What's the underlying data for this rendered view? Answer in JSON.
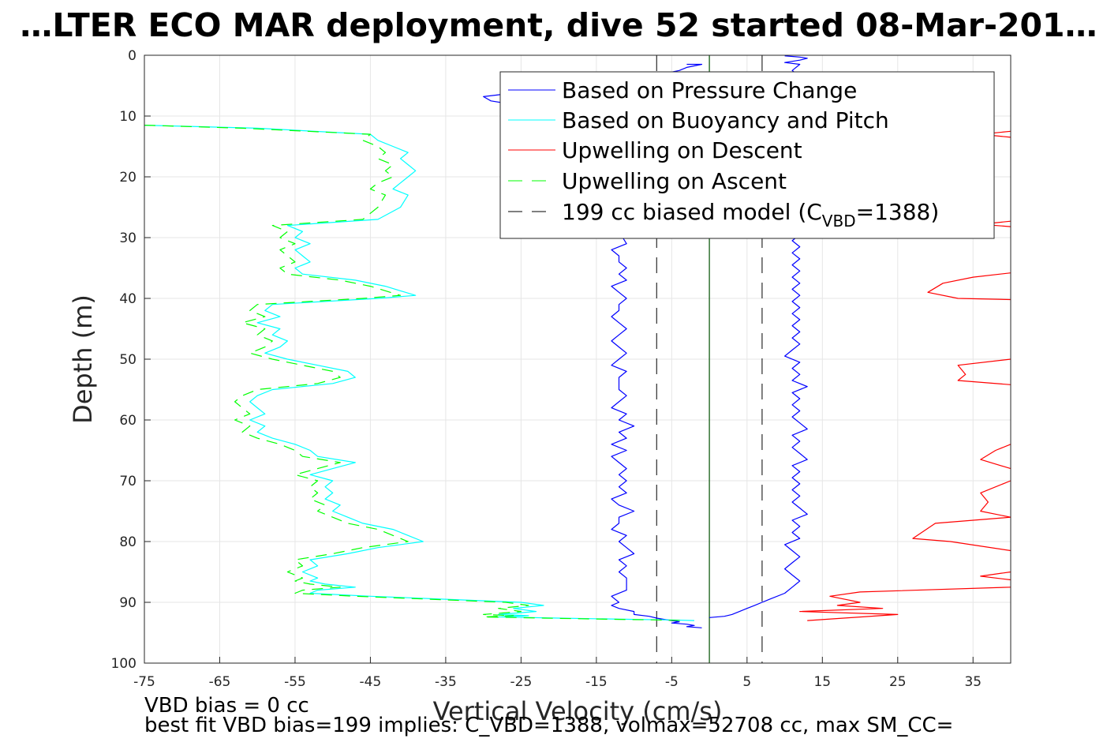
{
  "chart_data": {
    "type": "line",
    "title": "…LTER ECO MAR deployment, dive 52 started 08-Mar-201…",
    "xlabel": "Vertical Velocity (cm/s)",
    "ylabel": "Depth (m)",
    "xlim": [
      -75,
      40
    ],
    "ylim": [
      0,
      100
    ],
    "y_reversed": true,
    "grid": true,
    "legend_position": "top-right",
    "xticks": [
      "-75",
      "-65",
      "-55",
      "-45",
      "-35",
      "-25",
      "-15",
      "-5",
      "5",
      "15",
      "25",
      "35"
    ],
    "yticks": [
      "0",
      "10",
      "20",
      "30",
      "40",
      "50",
      "60",
      "70",
      "80",
      "90",
      "100"
    ],
    "legend": {
      "pressure": "Based on Pressure Change",
      "buoyancy": "Based on Buoyancy and Pitch",
      "upwell_descent": "Upwelling on Descent",
      "upwell_ascent": "Upwelling on Ascent",
      "model_prefix": "199 cc biased model (C",
      "model_sub": "VBD",
      "model_suffix": "=1388)"
    },
    "colors": {
      "pressure": "#0000ff",
      "buoyancy": "#00ffff",
      "upwell_descent": "#ff0000",
      "upwell_ascent": "#00ff00",
      "model": "#000000",
      "zero": "#005000",
      "grid": "#e6e6e6"
    },
    "model_lines_x": [
      -7,
      7
    ],
    "zero_line_x": 0,
    "series": [
      {
        "key": "pressure_descent",
        "name": "Based on Pressure Change",
        "x": [
          -3,
          -1,
          -3,
          -4,
          -8,
          -12,
          -17,
          -22,
          -25,
          -28,
          -30,
          -29,
          -24,
          -18,
          -14,
          -12,
          -11,
          -13,
          -12,
          -11,
          -12,
          -13,
          -11,
          -12,
          -11,
          -13,
          -12,
          -12,
          -11,
          -12,
          -11,
          -13,
          -12,
          -11,
          -12,
          -12,
          -13,
          -12,
          -11,
          -12,
          -13,
          -12,
          -11,
          -12,
          -13,
          -11,
          -12,
          -12,
          -12,
          -11,
          -12,
          -13,
          -11,
          -12,
          -10,
          -12,
          -11,
          -13,
          -11,
          -13,
          -12,
          -11,
          -12,
          -11,
          -12,
          -11,
          -13,
          -12,
          -10,
          -12,
          -12,
          -13,
          -11,
          -12,
          -11,
          -10,
          -12,
          -11,
          -12,
          -11,
          -11,
          -11,
          -13,
          -12,
          -13,
          -12,
          -10,
          -10,
          -8,
          -7,
          -6,
          -5,
          -4,
          -5,
          -3,
          -2,
          -3,
          -1
        ],
        "y": [
          1.5,
          1.5,
          2.0,
          2.5,
          3.5,
          4.3,
          5.0,
          5.5,
          6.0,
          6.5,
          6.8,
          7.5,
          8.5,
          9.5,
          11,
          13,
          15,
          17,
          19,
          21,
          23,
          25,
          27,
          29,
          31,
          32,
          33,
          34,
          35,
          36,
          37,
          38,
          39,
          40,
          41,
          42,
          43,
          44,
          45,
          46,
          47,
          48,
          49,
          50,
          51,
          52,
          53,
          54,
          55,
          56,
          57,
          58,
          59,
          60,
          61,
          62,
          63,
          64,
          65,
          66,
          67,
          68,
          69,
          70,
          71,
          72,
          73,
          74,
          75,
          76,
          77,
          78,
          79,
          80,
          81,
          82,
          83,
          84,
          85,
          86,
          87,
          88,
          89,
          90,
          90.5,
          91,
          91.5,
          92,
          92.3,
          92.6,
          92.8,
          93.0,
          93.2,
          93.4,
          93.6,
          93.8,
          94.0,
          94.2
        ]
      },
      {
        "key": "pressure_ascent",
        "name": "",
        "x": [
          0,
          2,
          3,
          4,
          5,
          6,
          7,
          8,
          10,
          11,
          12,
          11,
          10,
          11,
          12,
          11,
          10,
          12,
          11,
          12,
          11,
          13,
          12,
          11,
          12,
          11,
          12,
          11,
          12,
          11,
          13,
          12,
          11,
          12,
          11,
          13,
          12,
          11,
          12,
          11,
          12,
          11,
          13,
          11,
          12,
          11,
          12,
          10,
          11,
          12,
          11,
          12,
          11,
          12,
          11,
          12,
          11,
          12,
          11,
          12,
          11,
          12,
          11,
          12,
          11,
          12,
          11,
          12,
          10,
          12,
          10,
          12,
          11,
          12,
          11,
          12,
          11,
          12,
          11,
          12,
          11,
          12,
          11,
          12,
          11,
          12,
          11,
          12,
          10,
          12,
          11,
          12,
          13,
          12,
          11,
          12,
          10,
          12,
          13,
          12,
          11,
          10
        ],
        "y": [
          92.5,
          92.3,
          92.0,
          91.5,
          91.0,
          90.5,
          90.0,
          89.5,
          88.5,
          87.5,
          86.5,
          85.5,
          84.5,
          83.5,
          82.5,
          81.5,
          80.5,
          79.5,
          78.5,
          77.5,
          76.5,
          75.5,
          74.5,
          73.5,
          72.5,
          71.5,
          70.5,
          69.5,
          68.5,
          67.5,
          66.5,
          65.5,
          64.5,
          63.5,
          62.5,
          61.5,
          60.5,
          59.5,
          58.5,
          57.5,
          56.5,
          55.5,
          54.5,
          53.5,
          52.5,
          51.5,
          50.5,
          49.5,
          48.5,
          47.5,
          46.5,
          45.5,
          44.5,
          43.5,
          42.5,
          41.5,
          40.5,
          39.5,
          38.5,
          37.5,
          36.5,
          35.5,
          34.5,
          33.5,
          32.5,
          31.5,
          30.5,
          29.5,
          28.5,
          27.5,
          26.5,
          25.5,
          24.5,
          23.5,
          22.5,
          21.5,
          20.5,
          19.5,
          18.5,
          17.5,
          16.5,
          15.5,
          14.5,
          13.5,
          12.5,
          11.5,
          10.5,
          9.5,
          8.5,
          7.5,
          6.5,
          5.5,
          4.5,
          3.5,
          2.5,
          1.5,
          1.2,
          0.8,
          0.5,
          0.3,
          0.2,
          0.1
        ]
      },
      {
        "key": "buoyancy",
        "name": "Based on Buoyancy and Pitch",
        "x": [
          -75,
          -60,
          -45,
          -44,
          -42,
          -40,
          -41,
          -40,
          -39,
          -40,
          -41,
          -42,
          -40,
          -41,
          -44,
          -56,
          -54,
          -55,
          -53,
          -55,
          -54,
          -53,
          -55,
          -54,
          -47,
          -43,
          -39,
          -44,
          -58,
          -59,
          -57,
          -60,
          -57,
          -58,
          -56,
          -57,
          -59,
          -56,
          -52,
          -48,
          -47,
          -50,
          -58,
          -60,
          -61,
          -60,
          -59,
          -61,
          -59,
          -60,
          -58,
          -55,
          -53,
          -52,
          -47,
          -50,
          -53,
          -50,
          -51,
          -50,
          -51,
          -49,
          -50,
          -48,
          -46,
          -42,
          -40,
          -38,
          -44,
          -48,
          -53,
          -52,
          -54,
          -52,
          -53,
          -51,
          -47,
          -52,
          -53,
          -45,
          -35,
          -25,
          -22,
          -26,
          -23,
          -28,
          -24,
          -28,
          -20,
          -15,
          -10,
          -5,
          -2
        ],
        "y": [
          11.5,
          12,
          13,
          14,
          15,
          16,
          17,
          18,
          19,
          20,
          21,
          22,
          23,
          25,
          27,
          28,
          29,
          30,
          31,
          32,
          33,
          34,
          35,
          36,
          37,
          38,
          39.5,
          40,
          41,
          42,
          43,
          44,
          45,
          46,
          47,
          48,
          49,
          50,
          51,
          52,
          53,
          54,
          55,
          56,
          57,
          58,
          59,
          60,
          61,
          62,
          63,
          64,
          65,
          66,
          67,
          68,
          69,
          70,
          71,
          72,
          73,
          74,
          75,
          76,
          77,
          78,
          79,
          80,
          81,
          82,
          83,
          84,
          85,
          86,
          86.5,
          87,
          87.5,
          88,
          88.5,
          89,
          89.5,
          90,
          90.5,
          91,
          91.5,
          92,
          92.2,
          92.4,
          92.6,
          92.7,
          92.8,
          92.9,
          93.0
        ]
      },
      {
        "key": "upwell_ascent",
        "name": "Upwelling on Ascent",
        "x": [
          -75,
          -62,
          -45,
          -46,
          -44,
          -43,
          -44,
          -42,
          -43,
          -42,
          -44,
          -45,
          -43,
          -44,
          -46,
          -58,
          -56,
          -57,
          -55,
          -57,
          -56,
          -55,
          -57,
          -56,
          -49,
          -45,
          -41,
          -46,
          -60,
          -61,
          -59,
          -62,
          -59,
          -60,
          -58,
          -59,
          -61,
          -58,
          -54,
          -50,
          -49,
          -52,
          -60,
          -62,
          -63,
          -62,
          -61,
          -63,
          -61,
          -62,
          -60,
          -57,
          -55,
          -54,
          -49,
          -52,
          -55,
          -52,
          -53,
          -52,
          -53,
          -51,
          -52,
          -50,
          -48,
          -44,
          -42,
          -40,
          -46,
          -50,
          -55,
          -54,
          -56,
          -54,
          -55,
          -53,
          -49,
          -54,
          -55,
          -47,
          -37,
          -27,
          -24,
          -28,
          -25,
          -30,
          -26,
          -30,
          -22,
          -17,
          -12,
          -7,
          -3
        ],
        "y": [
          11.5,
          12,
          13,
          14,
          15,
          16,
          17,
          18,
          19,
          20,
          21,
          22,
          23,
          25,
          27,
          28,
          29,
          30,
          31,
          32,
          33,
          34,
          35,
          36,
          37,
          38,
          39.5,
          40,
          41,
          42,
          43,
          44,
          45,
          46,
          47,
          48,
          49,
          50,
          51,
          52,
          53,
          54,
          55,
          56,
          57,
          58,
          59,
          60,
          61,
          62,
          63,
          64,
          65,
          66,
          67,
          68,
          69,
          70,
          71,
          72,
          73,
          74,
          75,
          76,
          77,
          78,
          79,
          80,
          81,
          82,
          83,
          84,
          85,
          86,
          86.5,
          87,
          87.5,
          88,
          88.5,
          89,
          89.5,
          90,
          90.5,
          91,
          91.5,
          92,
          92.2,
          92.4,
          92.6,
          92.7,
          92.8,
          92.9,
          93.0
        ]
      },
      {
        "key": "upwell_descent_a",
        "name": "Upwelling on Descent",
        "x": [
          40,
          36,
          40
        ],
        "y": [
          12.5,
          13,
          13.5
        ]
      },
      {
        "key": "upwell_descent_b",
        "name": "",
        "x": [
          40,
          36,
          40
        ],
        "y": [
          27.3,
          27.8,
          28.2
        ]
      },
      {
        "key": "upwell_descent_c",
        "name": "",
        "x": [
          40,
          35,
          31,
          29,
          33,
          40
        ],
        "y": [
          35.8,
          36.5,
          37.5,
          39.0,
          40.0,
          40.2
        ]
      },
      {
        "key": "upwell_descent_d",
        "name": "",
        "x": [
          40,
          33,
          34,
          33,
          40
        ],
        "y": [
          50.0,
          51.0,
          52.5,
          53.5,
          54.2
        ]
      },
      {
        "key": "upwell_descent_e",
        "name": "",
        "x": [
          40,
          38,
          36,
          40
        ],
        "y": [
          64.0,
          65.0,
          66.5,
          68.0
        ]
      },
      {
        "key": "upwell_descent_f",
        "name": "",
        "x": [
          40,
          36,
          37,
          36,
          40
        ],
        "y": [
          70.0,
          72.0,
          73.5,
          75.0,
          76.0
        ]
      },
      {
        "key": "upwell_descent_g",
        "name": "",
        "x": [
          40,
          30,
          27,
          32,
          40
        ],
        "y": [
          76.0,
          77.0,
          79.5,
          80.0,
          81.5
        ]
      },
      {
        "key": "upwell_descent_h",
        "name": "",
        "x": [
          40,
          36,
          40
        ],
        "y": [
          85.0,
          85.7,
          86.3
        ]
      },
      {
        "key": "upwell_descent_i",
        "name": "",
        "x": [
          40,
          20,
          16,
          20,
          17,
          23,
          12,
          25,
          13
        ],
        "y": [
          87.5,
          88.3,
          89.0,
          90.0,
          90.5,
          91.0,
          91.5,
          92.0,
          93.0
        ]
      }
    ],
    "annotations": {
      "vbd_bias": "VBD bias = 0 cc",
      "best_fit": "best fit VBD bias=199 implies: C_VBD=1388, volmax=52708 cc, max SM_CC="
    }
  }
}
